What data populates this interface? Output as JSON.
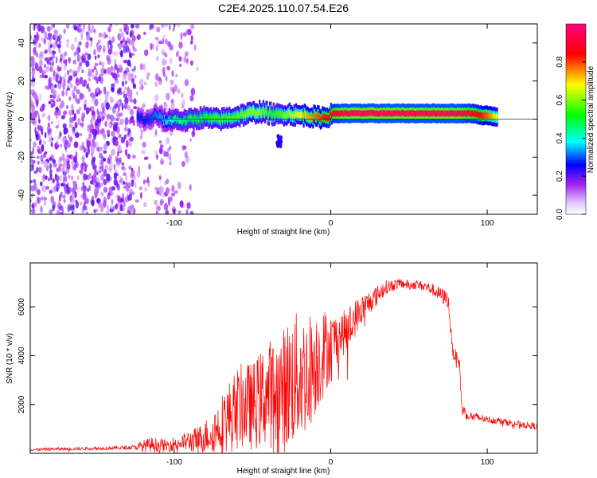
{
  "page": {
    "title": "C2E4.2025.110.07.54.E26"
  },
  "chart_data": [
    {
      "type": "heatmap",
      "xlabel": "Height of straight line (km)",
      "ylabel": "Frequency (Hz)",
      "xlim": [
        -192,
        132
      ],
      "ylim": [
        -50,
        50
      ],
      "xticks": [
        -100,
        0,
        100
      ],
      "yticks": [
        -40,
        -20,
        0,
        20,
        40
      ],
      "grid": false,
      "colorbar": {
        "label": "Normalized spectral amplitude",
        "range": [
          0,
          1
        ],
        "ticks": [
          0.0,
          0.2,
          0.4,
          0.6,
          0.8
        ],
        "colors": [
          "#ffffff",
          "#a020f0",
          "#0000ff",
          "#00ffff",
          "#00ff00",
          "#ffff00",
          "#ff0000",
          "#ff0080"
        ]
      },
      "ridge": {
        "x": [
          -124,
          -118,
          -112,
          -106,
          -100,
          -94,
          -88,
          -82,
          -76,
          -70,
          -64,
          -58,
          -52,
          -46,
          -40,
          -34,
          -28,
          -22,
          -16,
          -10,
          -4,
          2,
          8,
          14,
          20,
          30,
          40,
          50,
          60,
          70,
          80,
          90,
          96,
          100,
          106
        ],
        "frequency": [
          1,
          -1,
          2,
          -1,
          0,
          -1,
          0,
          1,
          0,
          0,
          1,
          2,
          3,
          4,
          3,
          2,
          3,
          2,
          2,
          1,
          1,
          3,
          3,
          3,
          3,
          3,
          3,
          3,
          3,
          3,
          3,
          3,
          2,
          2,
          1
        ],
        "amplitude": [
          0.3,
          0.3,
          0.35,
          0.4,
          0.5,
          0.5,
          0.55,
          0.55,
          0.6,
          0.6,
          0.6,
          0.62,
          0.65,
          0.65,
          0.6,
          0.6,
          0.65,
          0.7,
          0.75,
          0.8,
          0.85,
          0.9,
          0.95,
          0.95,
          0.95,
          0.95,
          0.95,
          0.95,
          0.95,
          0.95,
          0.95,
          0.9,
          0.85,
          0.8,
          0.7
        ]
      },
      "noise_region_x": [
        -192,
        -85
      ]
    },
    {
      "type": "line",
      "xlabel": "Height of straight line (km)",
      "ylabel": "SNR (10 * v/v)",
      "xlim": [
        -192,
        132
      ],
      "ylim": [
        0,
        7800
      ],
      "xticks": [
        -100,
        0,
        100
      ],
      "yticks": [
        2000,
        4000,
        6000
      ],
      "grid": false,
      "series": [
        {
          "color": "#ff0000",
          "x": [
            -192,
            -170,
            -150,
            -130,
            -125,
            -120,
            -115,
            -110,
            -105,
            -100,
            -95,
            -90,
            -85,
            -80,
            -75,
            -70,
            -65,
            -60,
            -55,
            -50,
            -45,
            -40,
            -35,
            -30,
            -25,
            -20,
            -15,
            -10,
            -5,
            0,
            5,
            10,
            15,
            20,
            25,
            30,
            35,
            40,
            45,
            50,
            55,
            60,
            65,
            70,
            75,
            78,
            80,
            82,
            84,
            86,
            90,
            95,
            100,
            105,
            110,
            115,
            120,
            125,
            132
          ],
          "y": [
            150,
            180,
            200,
            230,
            250,
            300,
            350,
            350,
            300,
            400,
            450,
            500,
            550,
            700,
            900,
            1200,
            1500,
            1800,
            2000,
            1900,
            2200,
            2500,
            2400,
            2600,
            3000,
            3100,
            3300,
            3700,
            4100,
            4400,
            4800,
            5000,
            5500,
            5900,
            6200,
            6500,
            6800,
            6900,
            6950,
            6900,
            6900,
            6850,
            6700,
            6500,
            6300,
            4100,
            4000,
            3800,
            1800,
            1650,
            1500,
            1450,
            1400,
            1350,
            1300,
            1250,
            1200,
            1150,
            1100
          ],
          "amplitude": [
            60,
            60,
            70,
            80,
            100,
            250,
            300,
            300,
            250,
            300,
            350,
            450,
            550,
            700,
            900,
            1200,
            1500,
            1700,
            1800,
            1800,
            2000,
            2200,
            2400,
            2600,
            2800,
            2700,
            2500,
            2200,
            1900,
            1400,
            1000,
            900,
            800,
            600,
            500,
            400,
            300,
            250,
            200,
            200,
            200,
            200,
            250,
            300,
            350,
            250,
            250,
            300,
            300,
            250,
            200,
            180,
            160,
            150,
            140,
            140,
            140,
            140,
            140
          ]
        }
      ]
    }
  ]
}
